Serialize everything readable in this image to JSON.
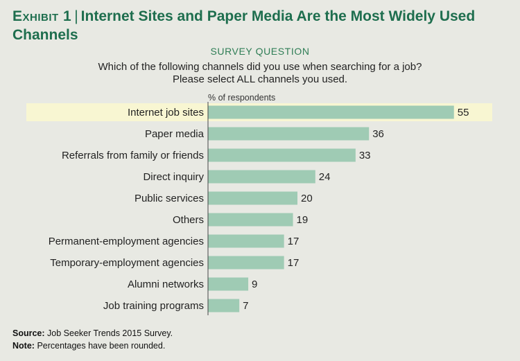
{
  "title": {
    "exhibit": "Exhibit 1",
    "text": "Internet Sites and Paper Media Are the Most Widely Used Channels"
  },
  "survey": {
    "label": "SURVEY QUESTION",
    "question_line1": "Which of the following channels did you use when searching for a job?",
    "question_line2": "Please select ALL channels you used."
  },
  "footer": {
    "source_label": "Source:",
    "source_text": "Job Seeker Trends 2015 Survey.",
    "note_label": "Note:",
    "note_text": "Percentages have been rounded."
  },
  "colors": {
    "bar": "#9fcbb4",
    "highlight": "#f8f6d2",
    "title": "#1e6e4e",
    "axis": "#444444",
    "background": "#e8e9e3"
  },
  "chart_data": {
    "type": "bar",
    "orientation": "horizontal",
    "ylabel": "% of respondents",
    "categories": [
      "Internet job sites",
      "Paper media",
      "Referrals from family or friends",
      "Direct inquiry",
      "Public services",
      "Others",
      "Permanent-employment agencies",
      "Temporary-employment agencies",
      "Alumni networks",
      "Job training programs"
    ],
    "values": [
      55,
      36,
      33,
      24,
      20,
      19,
      17,
      17,
      9,
      7
    ],
    "highlighted_category": "Internet job sites",
    "xlim": [
      0,
      60
    ],
    "grid": false,
    "legend": false
  }
}
